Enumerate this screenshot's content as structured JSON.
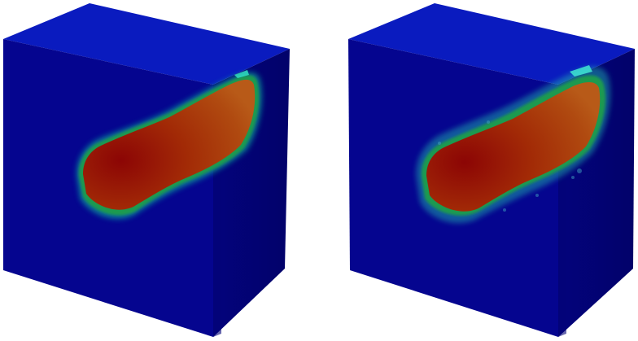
{
  "scene": {
    "background_color": "#ffffff",
    "panels": [
      {
        "id": "left",
        "description": "",
        "cube_colors": {
          "top": "#0a1bbf",
          "front": "#05058f",
          "side": "#03037c"
        },
        "blob_colors": {
          "core": "#8c0505",
          "mid": "#a22a06",
          "outer": "#b04a10",
          "rim": "#1a9a50",
          "halo": "#10c0a0"
        },
        "diffuse_edges": false
      },
      {
        "id": "right",
        "description": "",
        "cube_colors": {
          "top": "#0a1bbf",
          "front": "#05058f",
          "side": "#03037c"
        },
        "blob_colors": {
          "core": "#8c0505",
          "mid": "#a22a06",
          "outer": "#b04a10",
          "rim": "#1a9a50",
          "halo": "#10c0a0"
        },
        "diffuse_edges": true
      }
    ]
  }
}
